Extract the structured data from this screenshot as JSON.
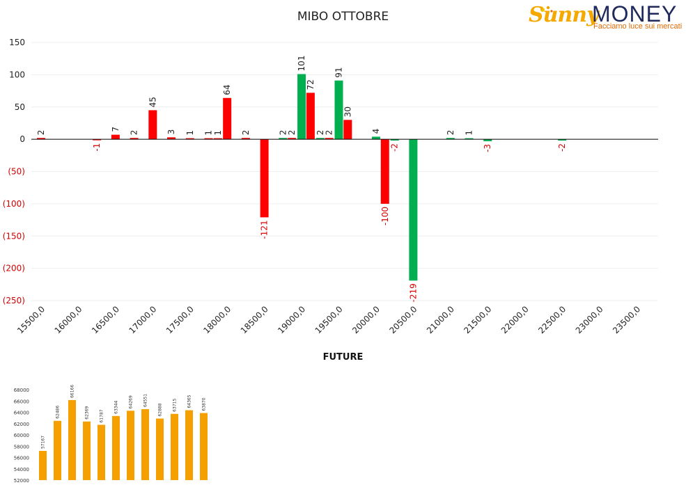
{
  "title": "MIBO OTTOBRE",
  "logo": {
    "brand_left": "Sunny",
    "brand_right": "MONEY",
    "tagline": "Facciamo luce sui mercati"
  },
  "future_title": "FUTURE",
  "colors": {
    "green": "#00b050",
    "red": "#ff0000",
    "negative_label": "#d40000",
    "orange": "#f5a000"
  },
  "chart_data": [
    {
      "type": "bar",
      "title": "MIBO OTTOBRE",
      "categories": [
        "15500,0",
        "16000,0",
        "16500,0",
        "17000,0",
        "17500,0",
        "18000,0",
        "18500,0",
        "19000,0",
        "19500,0",
        "20000,0",
        "20500,0",
        "21000,0",
        "21500,0",
        "22000,0",
        "22500,0",
        "23000,0",
        "23500,0"
      ],
      "ylim": [
        -250,
        150
      ],
      "yticks": [
        150,
        100,
        50,
        0,
        -50,
        -100,
        -150,
        -200,
        -250
      ],
      "ytick_labels": [
        "150",
        "100",
        "50",
        "0",
        "(50)",
        "(100)",
        "(150)",
        "(200)",
        "(250)"
      ],
      "grid": true,
      "bars": [
        {
          "x": 15500,
          "value": 2,
          "color": "red",
          "label": "2"
        },
        {
          "x": 16250,
          "value": -1,
          "color": "red",
          "label": "-1"
        },
        {
          "x": 16500,
          "value": 7,
          "color": "red",
          "label": "7"
        },
        {
          "x": 16750,
          "value": 2,
          "color": "red",
          "label": "2"
        },
        {
          "x": 17000,
          "value": 45,
          "color": "red",
          "label": "45"
        },
        {
          "x": 17250,
          "value": 3,
          "color": "red",
          "label": "3"
        },
        {
          "x": 17500,
          "value": 1,
          "color": "red",
          "label": "1"
        },
        {
          "x": 17750,
          "value": 1,
          "color": "red",
          "label": "1"
        },
        {
          "x": 17875,
          "value": 1,
          "color": "red",
          "label": "1"
        },
        {
          "x": 18000,
          "value": 64,
          "color": "red",
          "label": "64"
        },
        {
          "x": 18250,
          "value": 2,
          "color": "red",
          "label": "2"
        },
        {
          "x": 18500,
          "value": -121,
          "color": "red",
          "label": "-121"
        },
        {
          "x": 18750,
          "value": 2,
          "color": "green",
          "label": "2"
        },
        {
          "x": 18870,
          "value": 2,
          "color": "red",
          "label": "2"
        },
        {
          "x": 19000,
          "value": 101,
          "color": "green",
          "label": "101"
        },
        {
          "x": 19120,
          "value": 72,
          "color": "red",
          "label": "72"
        },
        {
          "x": 19250,
          "value": 2,
          "color": "green",
          "label": "2"
        },
        {
          "x": 19370,
          "value": 2,
          "color": "red",
          "label": "2"
        },
        {
          "x": 19500,
          "value": 91,
          "color": "green",
          "label": "91"
        },
        {
          "x": 19620,
          "value": 30,
          "color": "red",
          "label": "30"
        },
        {
          "x": 20000,
          "value": 4,
          "color": "green",
          "label": "4"
        },
        {
          "x": 20120,
          "value": -100,
          "color": "red",
          "label": "-100"
        },
        {
          "x": 20250,
          "value": -2,
          "color": "green",
          "label": "-2"
        },
        {
          "x": 20500,
          "value": -219,
          "color": "green",
          "label": "-219"
        },
        {
          "x": 21000,
          "value": 2,
          "color": "green",
          "label": "2"
        },
        {
          "x": 21250,
          "value": 1,
          "color": "green",
          "label": "1"
        },
        {
          "x": 21500,
          "value": -3,
          "color": "green",
          "label": "-3"
        },
        {
          "x": 22500,
          "value": -2,
          "color": "green",
          "label": "-2"
        }
      ]
    },
    {
      "type": "bar",
      "title": "FUTURE",
      "values": [
        57167,
        62486,
        66166,
        62369,
        61787,
        63344,
        64269,
        64551,
        62888,
        63715,
        64365,
        63870
      ],
      "ylim": [
        52000,
        68000
      ],
      "yticks": [
        68000,
        66000,
        64000,
        62000,
        60000,
        58000,
        56000,
        54000,
        52000
      ],
      "ytick_labels": [
        "68000",
        "66000",
        "64000",
        "62000",
        "60000",
        "58000",
        "56000",
        "54000",
        "52000"
      ],
      "color": "#f5a000"
    }
  ]
}
